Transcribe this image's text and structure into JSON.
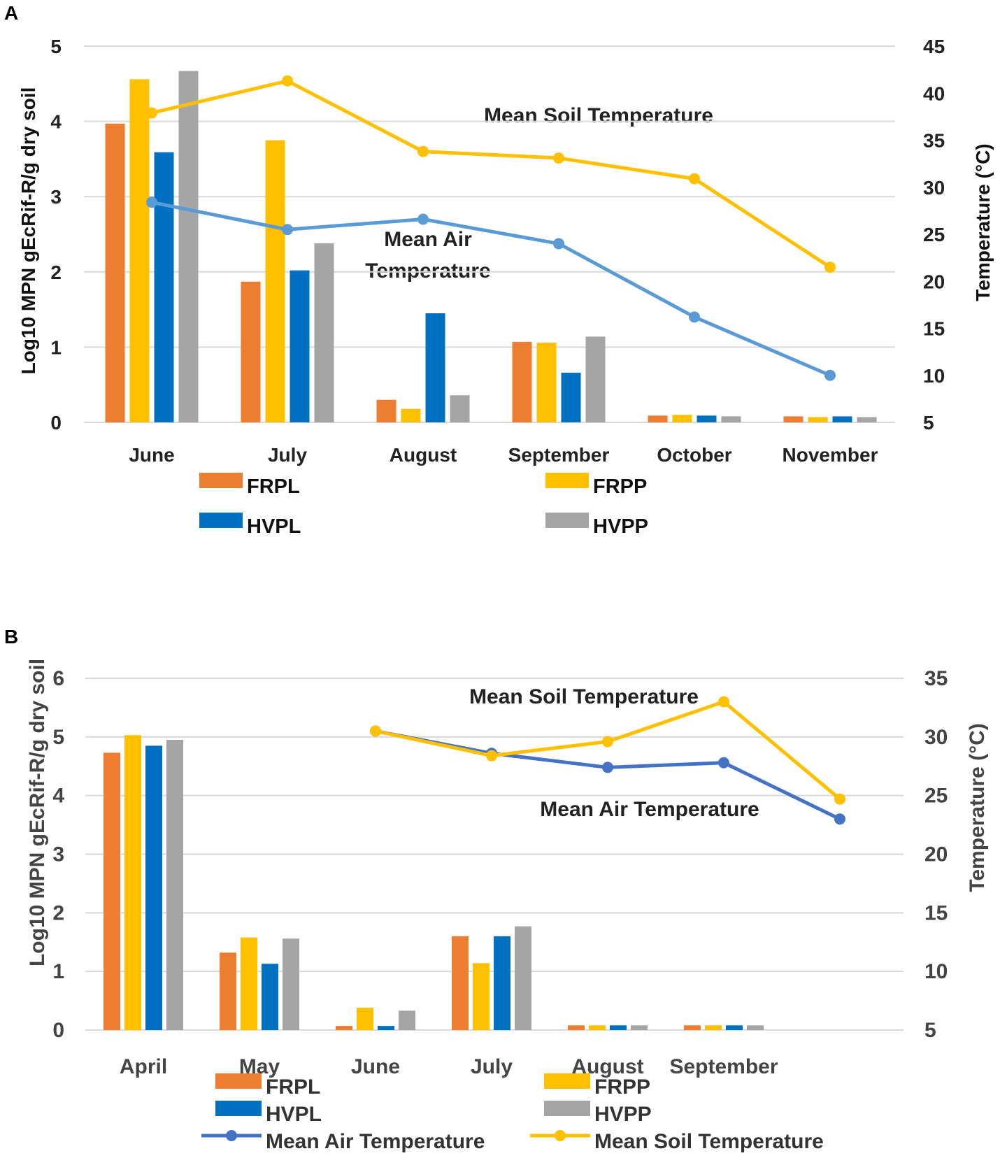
{
  "colors": {
    "FRPL": "#ED7D31",
    "FRPP": "#FFC000",
    "HVPL": "#0070C0",
    "HVPP": "#A5A5A5",
    "air_A": "#5B9BD5",
    "air_B": "#4472C4",
    "soil": "#FFC000"
  },
  "chart_data": [
    {
      "panel": "A",
      "type": "bar",
      "categories": [
        "June",
        "July",
        "August",
        "September",
        "October",
        "November"
      ],
      "series": [
        {
          "name": "FRPL",
          "values": [
            3.97,
            1.87,
            0.3,
            1.07,
            0.09,
            0.08
          ]
        },
        {
          "name": "FRPP",
          "values": [
            4.56,
            3.75,
            0.18,
            1.06,
            0.1,
            0.07
          ]
        },
        {
          "name": "HVPL",
          "values": [
            3.59,
            2.02,
            1.45,
            0.66,
            0.09,
            0.08
          ]
        },
        {
          "name": "HVPP",
          "values": [
            4.67,
            2.38,
            0.36,
            1.14,
            0.08,
            0.07
          ]
        }
      ],
      "ylabel": "Log10 MPN gEcRif-R/g dry soil",
      "ylim": [
        0,
        5
      ],
      "yticks": [
        "0",
        "1",
        "2",
        "3",
        "4",
        "5"
      ],
      "y2label": "Temperature (°C)",
      "y2lim": [
        5,
        45
      ],
      "y2ticks": [
        "5",
        "10",
        "15",
        "20",
        "25",
        "30",
        "35",
        "40",
        "45"
      ],
      "lines": [
        {
          "name": "Mean Soil Temperature",
          "values": [
            37.9,
            41.3,
            33.8,
            33.1,
            30.9,
            21.5
          ]
        },
        {
          "name": "Mean Air Temperature",
          "values": [
            28.4,
            25.5,
            26.6,
            24.0,
            16.2,
            10.0
          ]
        }
      ],
      "annotations": [
        "Mean Soil Temperature",
        "Mean Air",
        "Temperature"
      ],
      "legend": [
        "FRPL",
        "FRPP",
        "HVPL",
        "HVPP"
      ]
    },
    {
      "panel": "B",
      "type": "bar",
      "categories": [
        "April",
        "May",
        "June",
        "July",
        "August",
        "September"
      ],
      "series": [
        {
          "name": "FRPL",
          "values": [
            4.73,
            1.32,
            0.07,
            1.6,
            0.08,
            0.08
          ]
        },
        {
          "name": "FRPP",
          "values": [
            5.03,
            1.58,
            0.38,
            1.14,
            0.08,
            0.08
          ]
        },
        {
          "name": "HVPL",
          "values": [
            4.85,
            1.13,
            0.07,
            1.6,
            0.08,
            0.08
          ]
        },
        {
          "name": "HVPP",
          "values": [
            4.95,
            1.56,
            0.33,
            1.77,
            0.08,
            0.08
          ]
        }
      ],
      "ylabel": "Log10  MPN gEcRif-R/g dry soil",
      "ylim": [
        0,
        6
      ],
      "yticks": [
        "0",
        "1",
        "2",
        "3",
        "4",
        "5",
        "6"
      ],
      "y2label": "Temperature (°C)",
      "y2lim": [
        5,
        35
      ],
      "y2ticks": [
        "5",
        "10",
        "15",
        "20",
        "25",
        "30",
        "35"
      ],
      "line_x_positions": [
        2,
        3,
        4,
        5,
        6
      ],
      "lines": [
        {
          "name": "Mean Air Temperature",
          "values": [
            30.5,
            28.6,
            27.4,
            27.8,
            23.0
          ]
        },
        {
          "name": "Mean Soil Temperature",
          "values": [
            30.5,
            28.4,
            29.6,
            33.0,
            24.7
          ]
        }
      ],
      "annotations": [
        "Mean Soil Temperature",
        "Mean Air Temperature"
      ],
      "legend": [
        "FRPL",
        "FRPP",
        "HVPL",
        "HVPP",
        "Mean Air Temperature",
        "Mean Soil Temperature"
      ]
    }
  ],
  "panels": {
    "a": "A",
    "b": "B"
  }
}
